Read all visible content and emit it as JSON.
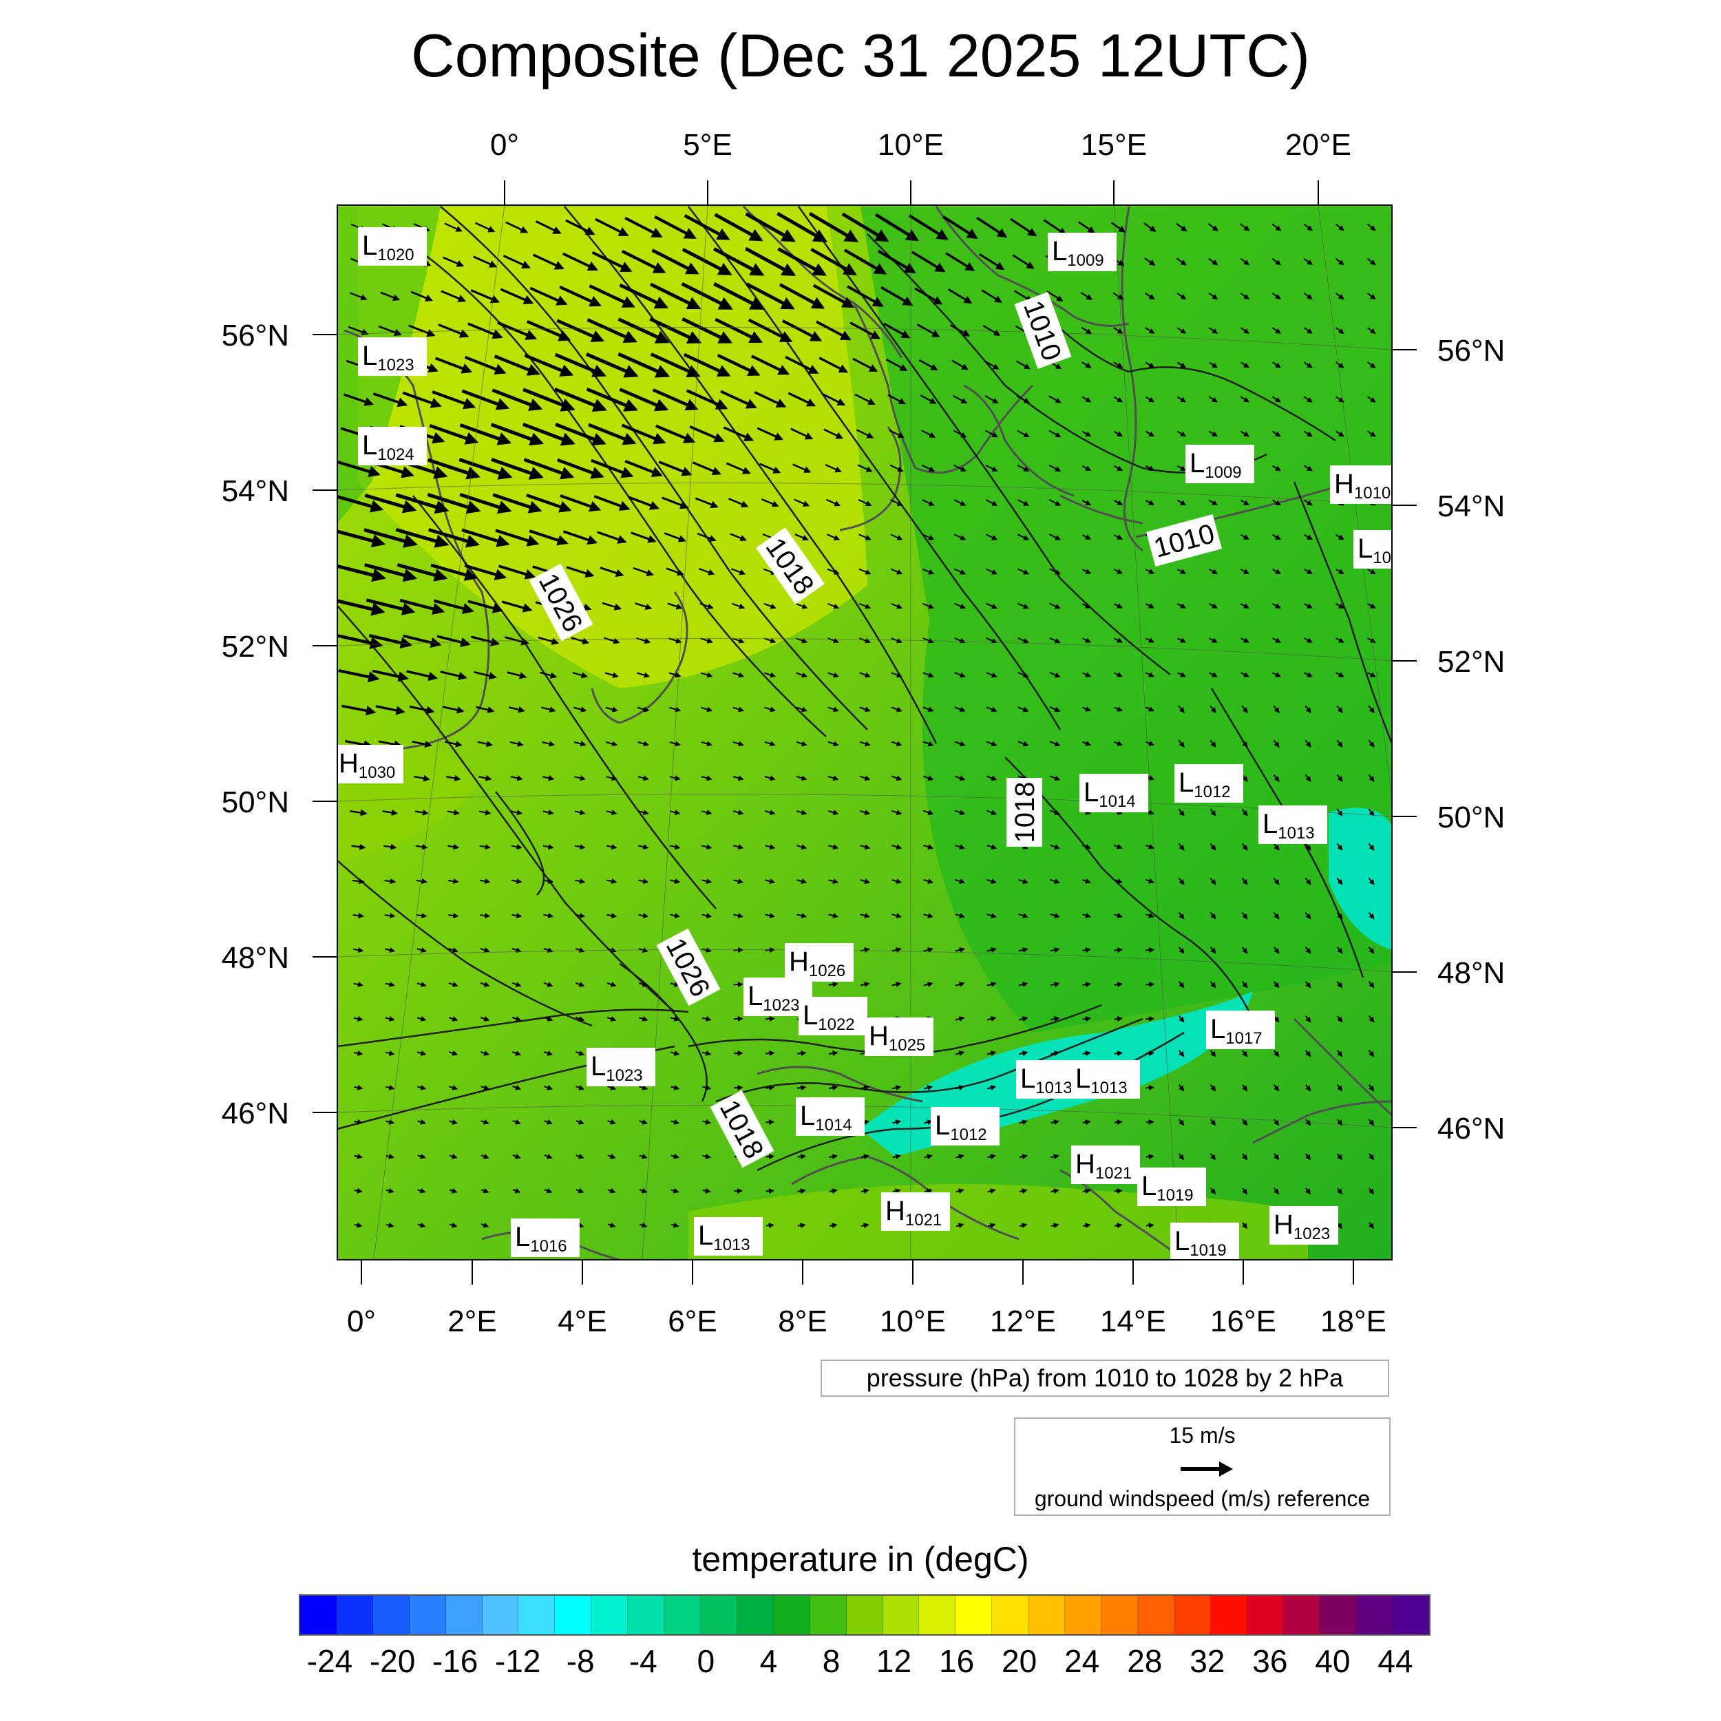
{
  "title": "Composite (Dec 31 2025 12UTC)",
  "top_axis_labels": [
    "0°",
    "5°E",
    "10°E",
    "15°E",
    "20°E"
  ],
  "bottom_axis_labels": [
    "0°",
    "2°E",
    "4°E",
    "6°E",
    "8°E",
    "10°E",
    "12°E",
    "14°E",
    "16°E",
    "18°E"
  ],
  "left_axis_labels": [
    "56°N",
    "54°N",
    "52°N",
    "50°N",
    "48°N",
    "46°N"
  ],
  "right_axis_labels": [
    "56°N",
    "54°N",
    "52°N",
    "50°N",
    "48°N",
    "46°N"
  ],
  "pressure_note": "pressure (hPa) from 1010 to 1028 by 2 hPa",
  "wind_reference": {
    "speed": "15 m/s",
    "label": "ground windspeed (m/s) reference"
  },
  "colorbar": {
    "title": "temperature in (degC)",
    "tick_labels": [
      "-24",
      "-20",
      "-16",
      "-12",
      "-8",
      "-4",
      "0",
      "4",
      "8",
      "12",
      "16",
      "20",
      "24",
      "28",
      "32",
      "36",
      "40",
      "44"
    ],
    "colors": [
      "#0000ff",
      "#0a32ff",
      "#1a5cff",
      "#2a80ff",
      "#3ca0ff",
      "#50c0ff",
      "#3ce0ff",
      "#00ffff",
      "#00f0d0",
      "#00e0a8",
      "#00d080",
      "#00c060",
      "#00b040",
      "#10b020",
      "#40c010",
      "#80d000",
      "#b0e000",
      "#d8f000",
      "#ffff00",
      "#ffe000",
      "#ffc000",
      "#ffa000",
      "#ff8000",
      "#ff6000",
      "#ff4000",
      "#ff1000",
      "#e00020",
      "#b00040",
      "#800060",
      "#600080",
      "#500090"
    ]
  },
  "map": {
    "colors": {
      "warm": "#c6e600",
      "mid": "#8fd400",
      "cool": "#22b81c",
      "cold": "#00e6c8",
      "coast": "#505050",
      "isobar": "#1e1e1e",
      "arrow": "#000000"
    },
    "contour_labels": [
      "1010",
      "1010",
      "1018",
      "1026",
      "1018",
      "1026",
      "1018"
    ],
    "pressure_centers": [
      {
        "type": "L",
        "value": "1020"
      },
      {
        "type": "L",
        "value": "1023"
      },
      {
        "type": "L",
        "value": "1024"
      },
      {
        "type": "L",
        "value": "1009"
      },
      {
        "type": "L",
        "value": "1009"
      },
      {
        "type": "H",
        "value": "1010"
      },
      {
        "type": "L",
        "value": "10"
      },
      {
        "type": "H",
        "value": "1030"
      },
      {
        "type": "L",
        "value": "1014"
      },
      {
        "type": "L",
        "value": "1012"
      },
      {
        "type": "L",
        "value": "1013"
      },
      {
        "type": "H",
        "value": "1026"
      },
      {
        "type": "L",
        "value": "1023"
      },
      {
        "type": "L",
        "value": "1022"
      },
      {
        "type": "H",
        "value": "1025"
      },
      {
        "type": "L",
        "value": "1017"
      },
      {
        "type": "L",
        "value": "1023"
      },
      {
        "type": "L",
        "value": "1013"
      },
      {
        "type": "L",
        "value": "1013"
      },
      {
        "type": "L",
        "value": "1014"
      },
      {
        "type": "L",
        "value": "1012"
      },
      {
        "type": "H",
        "value": "1021"
      },
      {
        "type": "L",
        "value": "1019"
      },
      {
        "type": "H",
        "value": "1021"
      },
      {
        "type": "H",
        "value": "1023"
      },
      {
        "type": "L",
        "value": "1019"
      },
      {
        "type": "L",
        "value": "1016"
      },
      {
        "type": "L",
        "value": "1013"
      }
    ]
  }
}
